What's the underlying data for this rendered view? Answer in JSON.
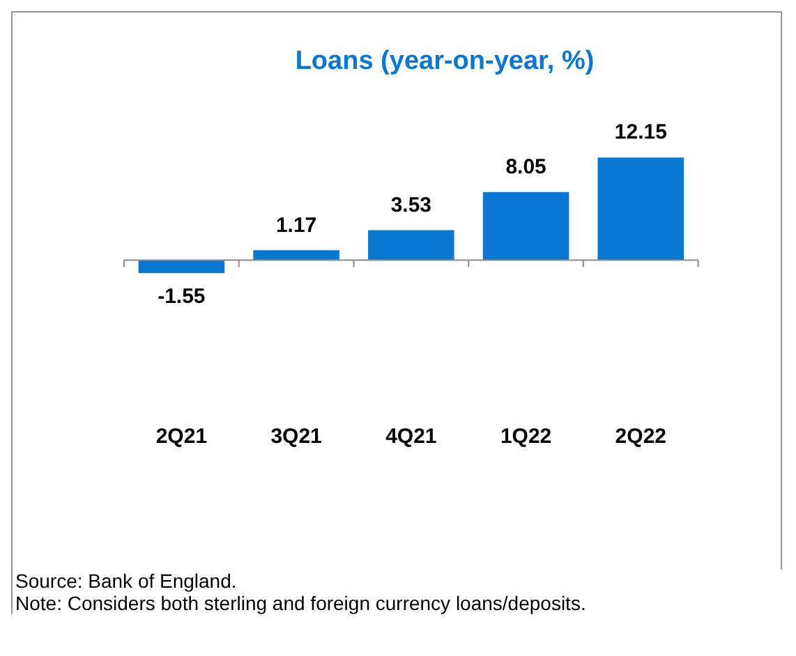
{
  "chart_data": {
    "type": "bar",
    "title": "Loans (year-on-year, %)",
    "categories": [
      "2Q21",
      "3Q21",
      "4Q21",
      "1Q22",
      "2Q22"
    ],
    "values": [
      -1.55,
      1.17,
      3.53,
      8.05,
      12.15
    ],
    "color": "#0a77d0",
    "data_labels": true,
    "grid": false,
    "legend": false,
    "annotations": [
      "Source: Bank of England.",
      "Note: Considers both sterling and foreign currency loans/deposits."
    ]
  }
}
